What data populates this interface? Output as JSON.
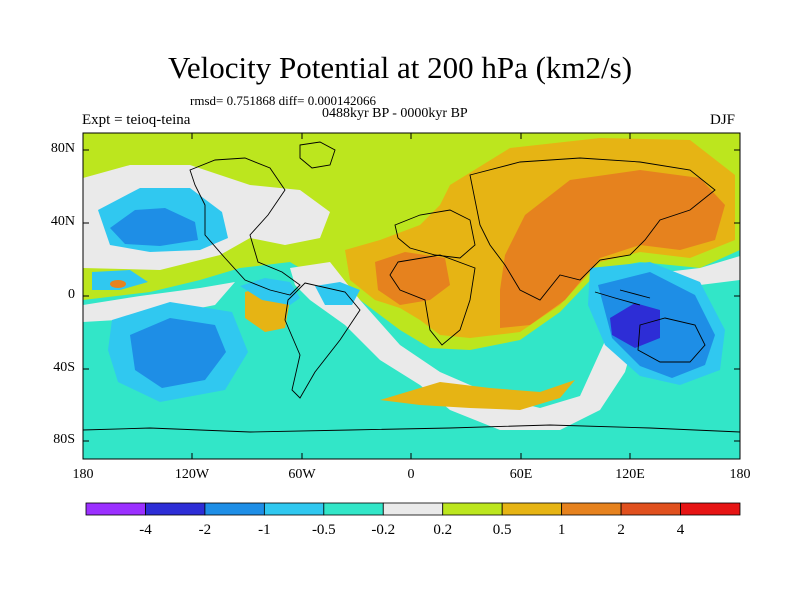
{
  "title": "Velocity Potential at 200 hPa (km2/s)",
  "stats": "rmsd= 0.751868 diff= 0.000142066",
  "period": "0488kyr BP - 0000kyr BP",
  "experiment": "Expt = teioq-teina",
  "season": "DJF",
  "map": {
    "lat_ticks": [
      "80N",
      "40N",
      "0",
      "40S",
      "80S"
    ],
    "lon_ticks": [
      "180",
      "120W",
      "60W",
      "0",
      "60E",
      "120E",
      "180"
    ]
  },
  "colorbar": {
    "colors": [
      "#9b30ff",
      "#2d2dd6",
      "#1e8ee6",
      "#30c8f0",
      "#32e6c8",
      "#eaeaea",
      "#bce61e",
      "#e6b414",
      "#e6821e",
      "#e0501e",
      "#e61414"
    ],
    "labels": [
      "-4",
      "-2",
      "-1",
      "-0.5",
      "-0.2",
      "0.2",
      "0.5",
      "1",
      "2",
      "4"
    ]
  }
}
